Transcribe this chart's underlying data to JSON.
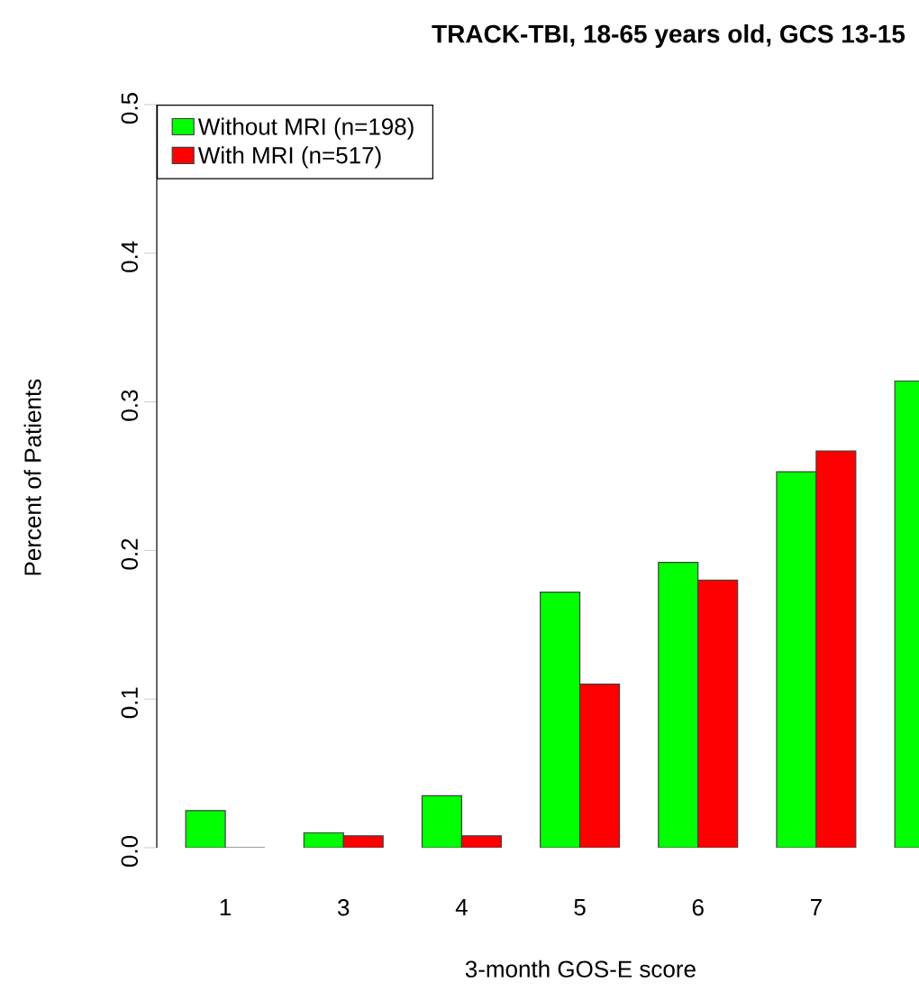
{
  "chart_data": {
    "type": "bar",
    "title": "TRACK-TBI, 18-65 years old, GCS 13-15",
    "xlabel": "3-month GOS-E score",
    "ylabel": "Percent of Patients",
    "categories": [
      "1",
      "3",
      "4",
      "5",
      "6",
      "7",
      null
    ],
    "series": [
      {
        "name": "Without MRI (n=198)",
        "color": "#00ff00",
        "values": [
          0.025,
          0.01,
          0.035,
          0.172,
          0.192,
          0.253,
          0.314
        ]
      },
      {
        "name": "With MRI (n=517)",
        "color": "#ff0000",
        "values": [
          0.0,
          0.008,
          0.008,
          0.11,
          0.18,
          0.267,
          null
        ]
      }
    ],
    "ylim": [
      0,
      0.5
    ],
    "yticks": [
      {
        "value": 0,
        "label": "0.0"
      },
      0.1,
      0.2,
      0.3,
      0.4,
      0.5
    ],
    "legend": "top left"
  }
}
